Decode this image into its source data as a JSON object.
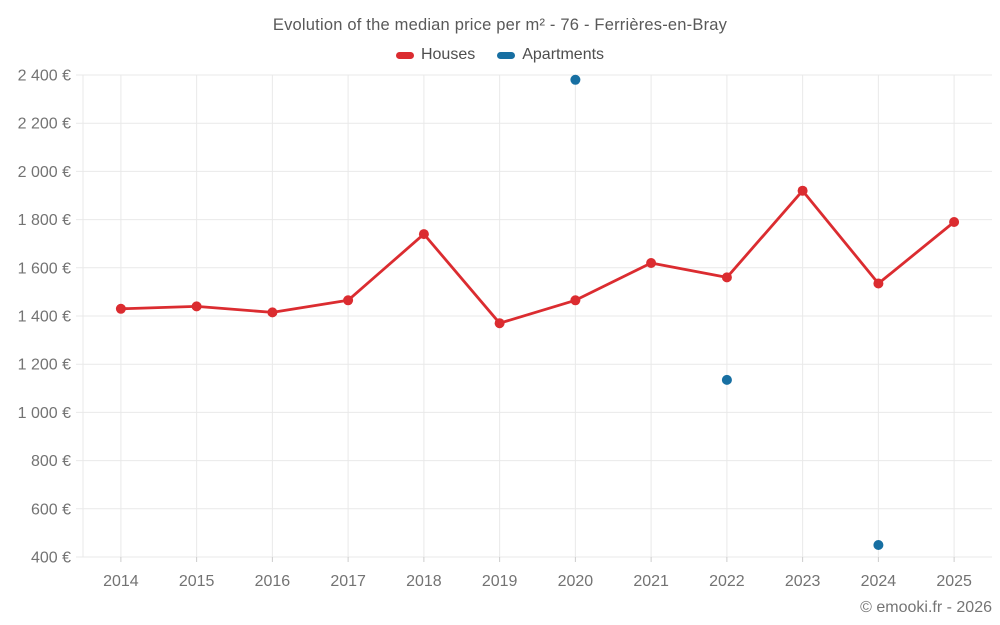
{
  "footer": "© emooki.fr - 2026",
  "colors": {
    "houses_red": "#db2c30",
    "apartments_blue": "#176fa2",
    "grid": "#e9e9e9",
    "axis_tick": "#cccccc",
    "tick_text": "#737373",
    "title_text": "#595959",
    "background": "#ffffff"
  },
  "chart_data": {
    "type": "line",
    "title": "Evolution of the median price per m² - 76 - Ferrières-en-Bray",
    "categories": [
      "2014",
      "2015",
      "2016",
      "2017",
      "2018",
      "2019",
      "2020",
      "2021",
      "2022",
      "2023",
      "2024",
      "2025"
    ],
    "series": [
      {
        "name": "Houses",
        "color": "#db2c30",
        "line": true,
        "marker": "circle",
        "values": [
          1430,
          1440,
          1415,
          1465,
          1740,
          1370,
          1465,
          1620,
          1560,
          1920,
          1535,
          1790
        ]
      },
      {
        "name": "Apartments",
        "color": "#176fa2",
        "line": false,
        "marker": "circle",
        "values": [
          null,
          null,
          null,
          null,
          null,
          null,
          2380,
          null,
          1135,
          null,
          450,
          null
        ]
      }
    ],
    "xlabel": "",
    "ylabel": "",
    "ylim": [
      400,
      2400
    ],
    "ytick_step": 200,
    "ytick_suffix": " €",
    "grid": true,
    "legend_position": "top"
  }
}
